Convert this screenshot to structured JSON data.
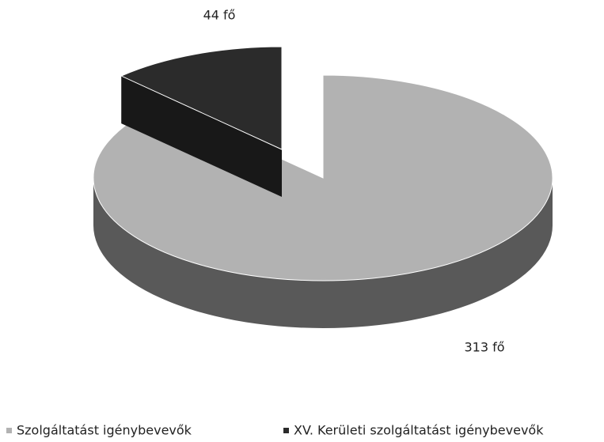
{
  "chart_data": {
    "type": "pie",
    "categories": [
      "Szolgáltatást igénybevevők",
      "XV. Kerületi szolgáltatást igénybevevők"
    ],
    "values": [
      313,
      44
    ],
    "value_labels": [
      "313 fő",
      "44 fő"
    ],
    "colors": [
      "#b2b2b2",
      "#2b2b2b"
    ],
    "legend": "bottom"
  }
}
